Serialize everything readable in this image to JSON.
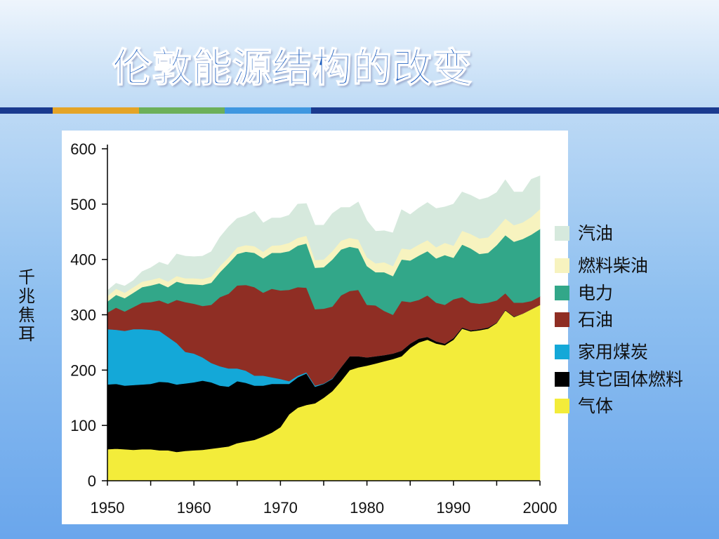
{
  "slide": {
    "title": "伦敦能源结构的改变",
    "accent_bar": [
      "#1a3a8f",
      "#e4a427",
      "#6cb05a",
      "#3f97e0",
      "#1a3a8f"
    ]
  },
  "chart_data": {
    "type": "area",
    "stacked": true,
    "title": "",
    "xlabel": "",
    "ylabel": "千兆焦耳",
    "xlim": [
      1950,
      2000
    ],
    "ylim": [
      0,
      600
    ],
    "x_ticks": [
      "1950",
      "1960",
      "1970",
      "1980",
      "1990",
      "2000"
    ],
    "y_ticks": [
      "0",
      "100",
      "200",
      "300",
      "400",
      "500",
      "600"
    ],
    "legend_position": "right",
    "x": [
      1950,
      1951,
      1952,
      1953,
      1954,
      1955,
      1956,
      1957,
      1958,
      1959,
      1960,
      1961,
      1962,
      1963,
      1964,
      1965,
      1966,
      1967,
      1968,
      1969,
      1970,
      1971,
      1972,
      1973,
      1974,
      1975,
      1976,
      1977,
      1978,
      1979,
      1980,
      1981,
      1982,
      1983,
      1984,
      1985,
      1986,
      1987,
      1988,
      1989,
      1990,
      1991,
      1992,
      1993,
      1994,
      1995,
      1996,
      1997,
      1998,
      1999,
      2000
    ],
    "series": [
      {
        "name": "气体",
        "color": "#f3ec3a",
        "values": [
          57,
          58,
          57,
          56,
          57,
          57,
          55,
          55,
          52,
          54,
          55,
          56,
          58,
          60,
          62,
          68,
          71,
          74,
          80,
          87,
          97,
          120,
          132,
          137,
          140,
          150,
          162,
          180,
          200,
          205,
          208,
          212,
          216,
          220,
          225,
          240,
          250,
          255,
          248,
          245,
          255,
          275,
          270,
          272,
          275,
          285,
          308,
          296,
          302,
          310,
          318
        ]
      },
      {
        "name": "其它固体燃料",
        "color": "#000000",
        "values": [
          117,
          117,
          115,
          117,
          117,
          118,
          124,
          123,
          122,
          122,
          123,
          125,
          120,
          112,
          108,
          112,
          106,
          98,
          92,
          88,
          78,
          55,
          55,
          57,
          30,
          25,
          22,
          25,
          25,
          20,
          15,
          13,
          11,
          10,
          10,
          8,
          7,
          5,
          4,
          3,
          3,
          2,
          2,
          2,
          2,
          1,
          1,
          1,
          0,
          0,
          0
        ]
      },
      {
        "name": "家用煤炭",
        "color": "#14a8d8",
        "values": [
          100,
          98,
          99,
          101,
          100,
          98,
          92,
          82,
          75,
          57,
          52,
          42,
          35,
          35,
          33,
          23,
          22,
          18,
          18,
          12,
          9,
          5,
          3,
          2,
          2,
          1,
          1,
          0,
          0,
          0,
          0,
          0,
          0,
          0,
          0,
          0,
          0,
          0,
          0,
          0,
          0,
          0,
          0,
          0,
          0,
          0,
          0,
          0,
          0,
          0,
          0
        ]
      },
      {
        "name": "石油",
        "color": "#8f2e24",
        "values": [
          30,
          40,
          35,
          40,
          48,
          50,
          55,
          60,
          78,
          90,
          90,
          93,
          105,
          125,
          135,
          150,
          155,
          160,
          150,
          160,
          160,
          165,
          160,
          153,
          138,
          135,
          130,
          130,
          118,
          120,
          95,
          92,
          80,
          70,
          90,
          75,
          70,
          75,
          70,
          70,
          70,
          55,
          50,
          46,
          45,
          40,
          30,
          25,
          20,
          15,
          15
        ]
      },
      {
        "name": "电力",
        "color": "#32a789",
        "values": [
          20,
          23,
          24,
          26,
          28,
          30,
          31,
          30,
          33,
          33,
          35,
          38,
          40,
          45,
          55,
          57,
          60,
          62,
          62,
          65,
          68,
          70,
          75,
          80,
          75,
          75,
          85,
          83,
          80,
          75,
          70,
          60,
          70,
          70,
          75,
          75,
          80,
          80,
          80,
          90,
          75,
          95,
          98,
          90,
          90,
          100,
          105,
          110,
          115,
          120,
          122
        ]
      },
      {
        "name": "燃料柴油",
        "color": "#f7f3bf",
        "values": [
          10,
          11,
          10,
          10,
          10,
          10,
          10,
          10,
          10,
          10,
          11,
          11,
          11,
          11,
          11,
          12,
          12,
          12,
          12,
          13,
          14,
          15,
          14,
          14,
          14,
          14,
          15,
          16,
          16,
          16,
          16,
          16,
          18,
          18,
          20,
          20,
          20,
          20,
          20,
          22,
          22,
          25,
          26,
          28,
          28,
          30,
          30,
          30,
          30,
          32,
          36
        ]
      },
      {
        "name": "汽油",
        "color": "#d6e9dd",
        "values": [
          10,
          10,
          12,
          12,
          18,
          22,
          28,
          30,
          40,
          40,
          39,
          41,
          45,
          52,
          55,
          52,
          53,
          63,
          52,
          50,
          49,
          50,
          61,
          58,
          63,
          62,
          68,
          60,
          55,
          68,
          66,
          58,
          57,
          60,
          70,
          63,
          66,
          68,
          70,
          65,
          75,
          70,
          70,
          70,
          72,
          65,
          70,
          60,
          55,
          68,
          60
        ]
      }
    ]
  }
}
